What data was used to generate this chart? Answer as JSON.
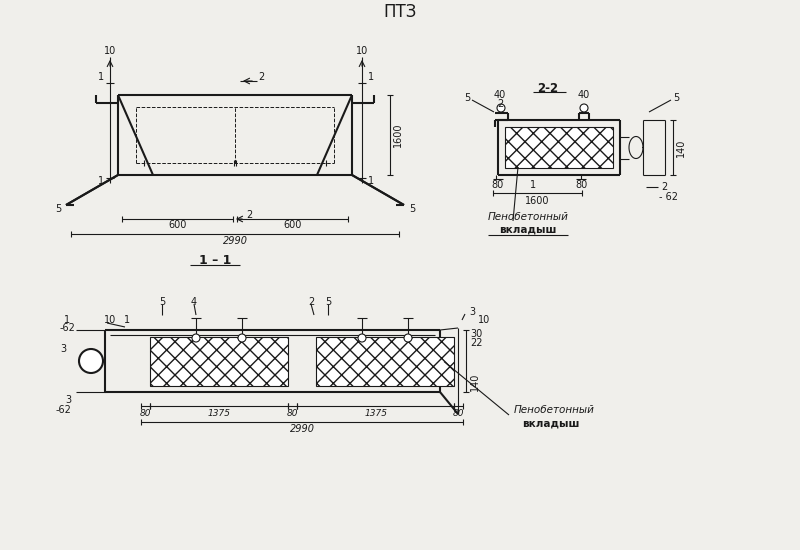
{
  "title": "ПТЗ",
  "bg_color": "#f0efeb",
  "line_color": "#1a1a1a",
  "text_color": "#1a1a1a",
  "title_fontsize": 12,
  "label_fontsize": 7,
  "section_label_11": "1 – 1",
  "section_label_22": "2-2",
  "dim_2990": "2990",
  "dim_1600": "1600",
  "dim_600": "600",
  "dim_1375": "1375",
  "penobeton1": "Пенобетонный",
  "penobeton2": "вкладыш"
}
